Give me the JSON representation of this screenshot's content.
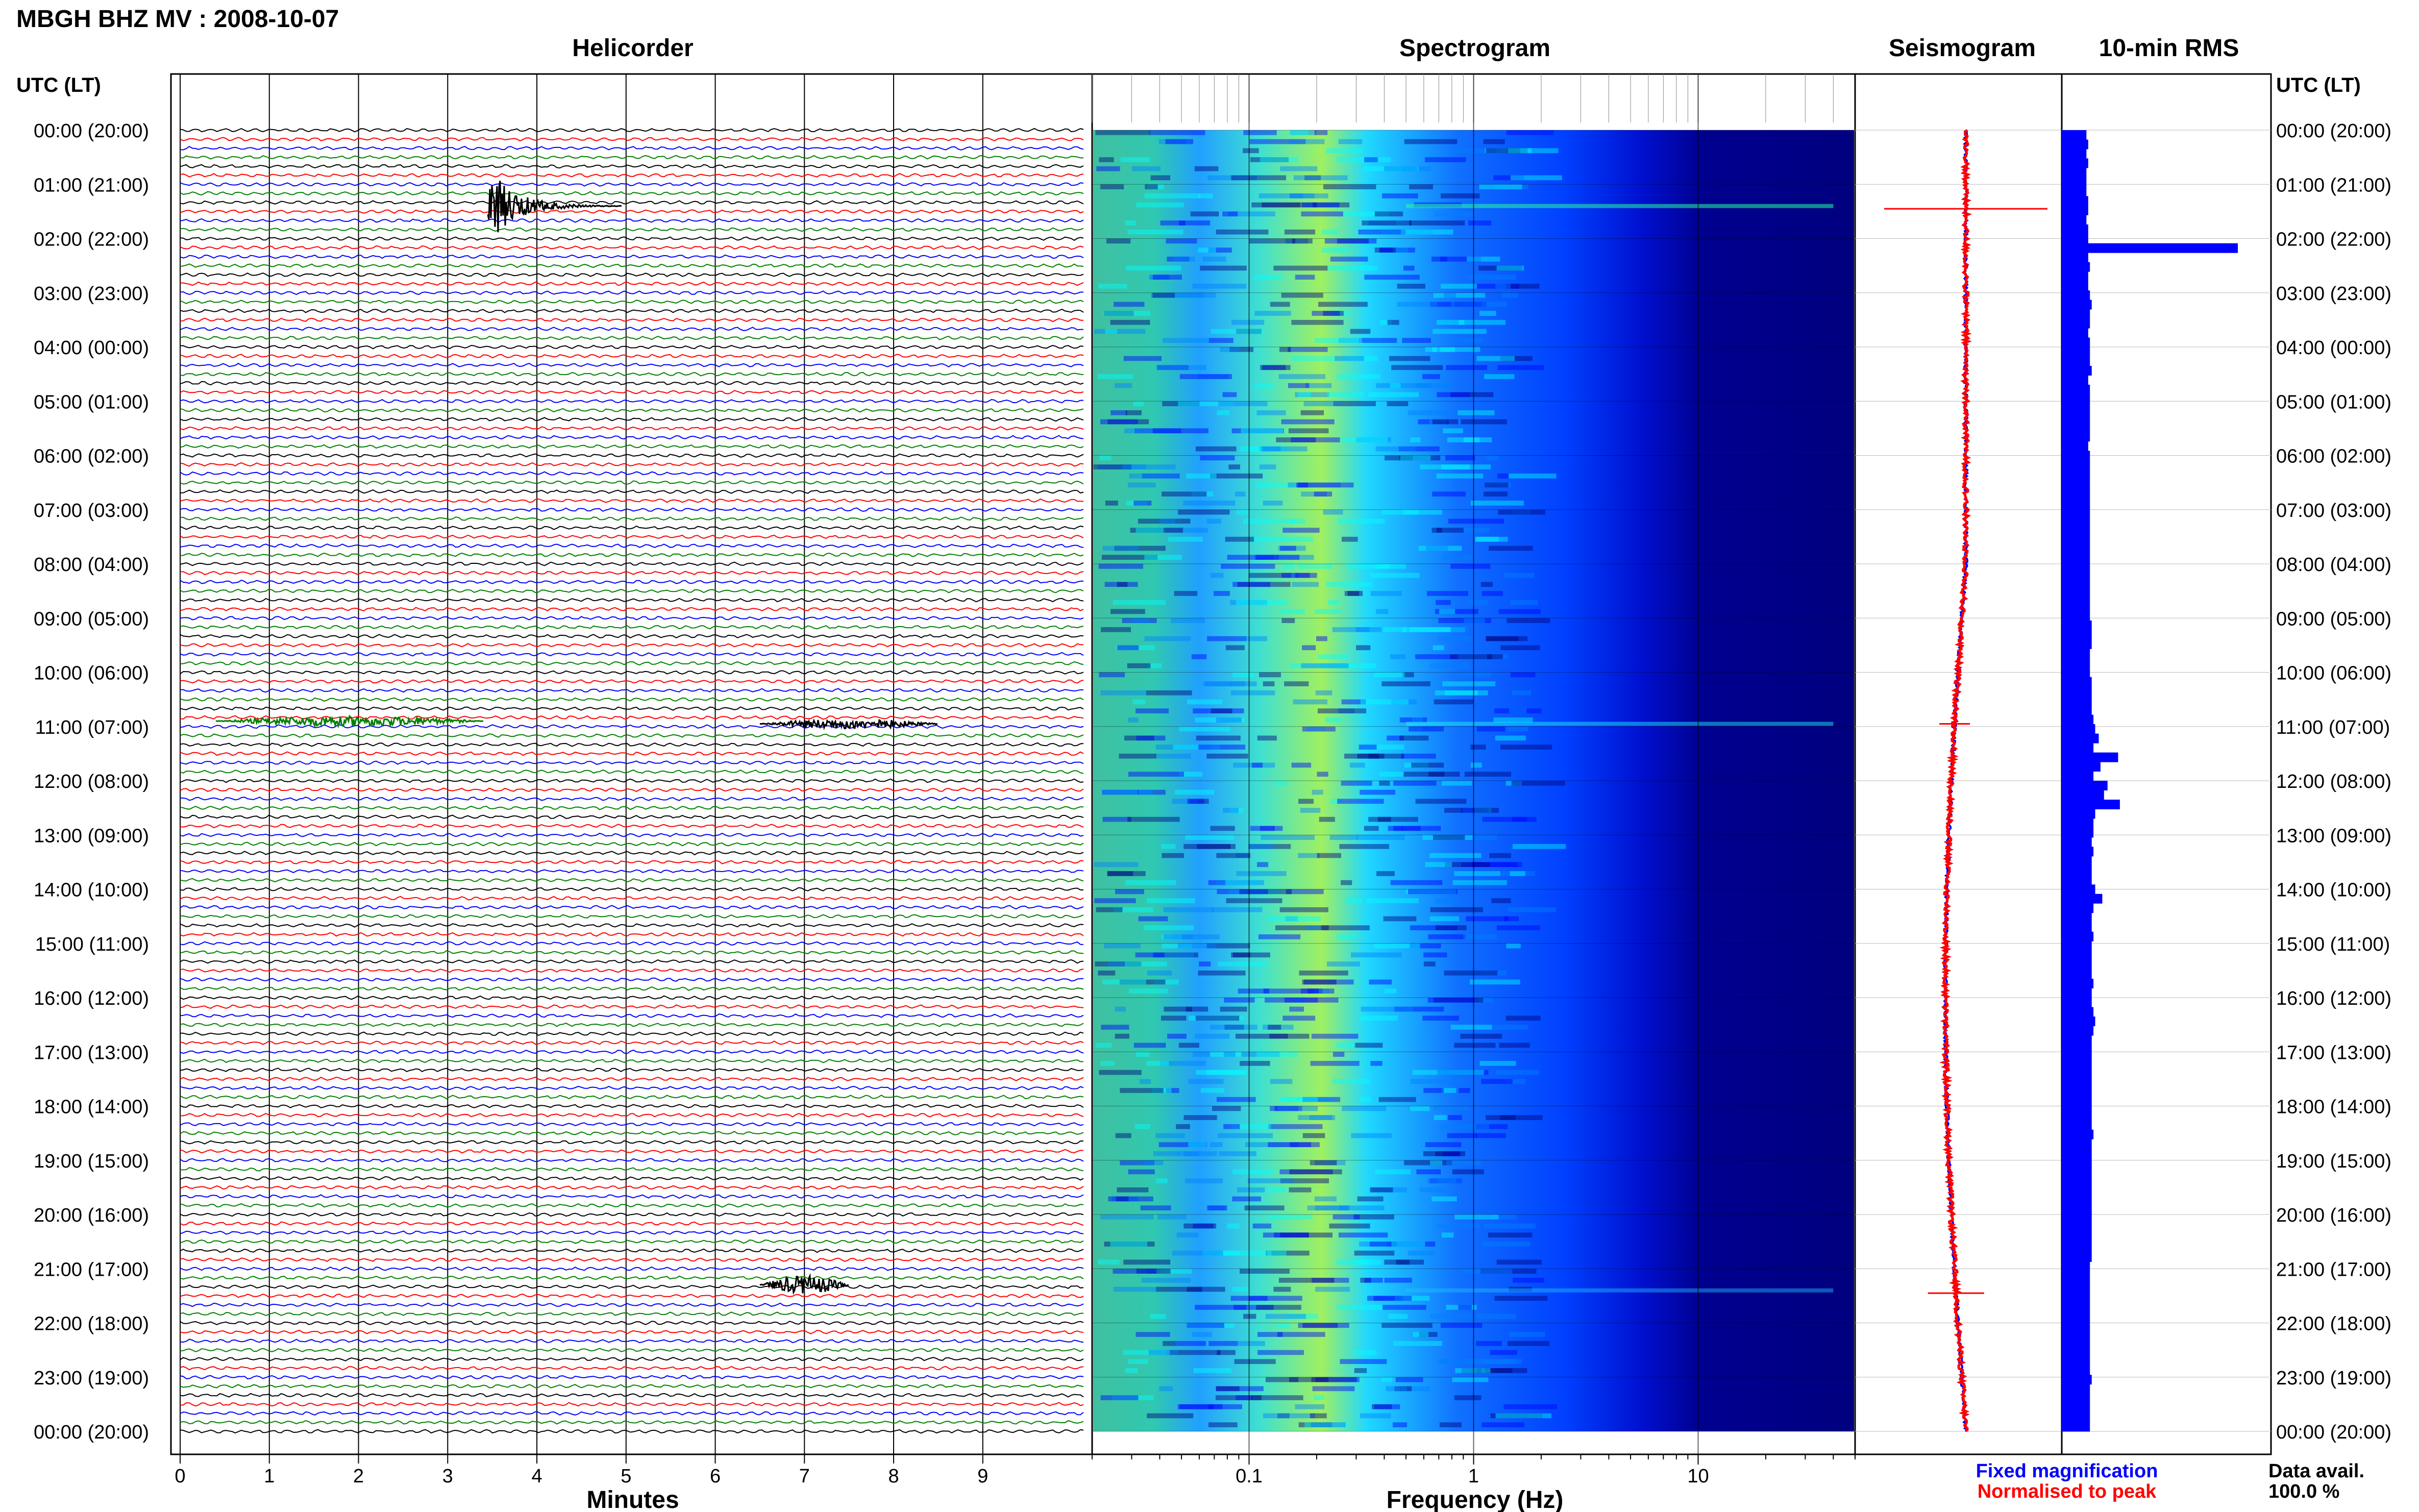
{
  "header": {
    "station_title": "MBGH BHZ MV : 2008-10-07"
  },
  "panels": {
    "helicorder_title": "Helicorder",
    "spectrogram_title": "Spectrogram",
    "seismogram_title": "Seismogram",
    "rms_title": "10-min RMS"
  },
  "axes": {
    "left_header": "UTC (LT)",
    "right_header": "UTC (LT)",
    "minutes_label": "Minutes",
    "frequency_label": "Frequency (Hz)"
  },
  "legend": {
    "fixed_label": "Fixed magnification",
    "normalised_label": "Normalised to peak",
    "fixed_color": "#0000ff",
    "normalised_color": "#ff0000"
  },
  "data_availability": {
    "label": "Data avail.",
    "value": "100.0 %"
  },
  "chart_data": {
    "type": "table",
    "time_labels": [
      "00:00 (20:00)",
      "01:00 (21:00)",
      "02:00 (22:00)",
      "03:00 (23:00)",
      "04:00 (00:00)",
      "05:00 (01:00)",
      "06:00 (02:00)",
      "07:00 (03:00)",
      "08:00 (04:00)",
      "09:00 (05:00)",
      "10:00 (06:00)",
      "11:00 (07:00)",
      "12:00 (08:00)",
      "13:00 (09:00)",
      "14:00 (10:00)",
      "15:00 (11:00)",
      "16:00 (12:00)",
      "17:00 (13:00)",
      "18:00 (14:00)",
      "19:00 (15:00)",
      "20:00 (16:00)",
      "21:00 (17:00)",
      "22:00 (18:00)",
      "23:00 (19:00)",
      "00:00 (20:00)"
    ],
    "helicorder": {
      "x_ticks": [
        "0",
        "1",
        "2",
        "3",
        "4",
        "5",
        "6",
        "7",
        "8",
        "9"
      ],
      "xlim": [
        0,
        10
      ],
      "trace_colors": [
        "#000000",
        "#ff0000",
        "#0000ff",
        "#008000"
      ],
      "traces_per_hour": 6,
      "events": [
        {
          "hour": 1.4,
          "minute": 3.45,
          "duration": 1.5,
          "color": "#000000",
          "amplitude": "large"
        },
        {
          "hour": 10.9,
          "minute": 0.4,
          "duration": 3.0,
          "color": "#008000",
          "amplitude": "small"
        },
        {
          "hour": 10.95,
          "minute": 6.5,
          "duration": 2.0,
          "color": "#000000",
          "amplitude": "small"
        },
        {
          "hour": 21.3,
          "minute": 6.5,
          "duration": 1.0,
          "color": "#000000",
          "amplitude": "medium"
        }
      ]
    },
    "spectrogram": {
      "x_scale": "log",
      "xlim": [
        0.02,
        50
      ],
      "x_ticks": [
        "0.1",
        "1",
        "10"
      ],
      "colormap": [
        "#00007f",
        "#0000ff",
        "#0080ff",
        "#00ffff",
        "#80ff80",
        "#ffff00",
        "#ff8000"
      ]
    },
    "rms": {
      "bin_minutes": 10,
      "relative_values": [
        0.14,
        0.15,
        0.14,
        0.15,
        0.14,
        0.14,
        0.14,
        0.15,
        0.15,
        0.14,
        0.15,
        0.15,
        1.0,
        0.15,
        0.16,
        0.15,
        0.15,
        0.16,
        0.17,
        0.16,
        0.16,
        0.15,
        0.16,
        0.16,
        0.16,
        0.17,
        0.15,
        0.16,
        0.16,
        0.16,
        0.16,
        0.16,
        0.16,
        0.15,
        0.16,
        0.16,
        0.16,
        0.16,
        0.16,
        0.16,
        0.16,
        0.16,
        0.16,
        0.16,
        0.16,
        0.16,
        0.16,
        0.16,
        0.16,
        0.16,
        0.16,
        0.16,
        0.17,
        0.17,
        0.17,
        0.16,
        0.16,
        0.16,
        0.17,
        0.17,
        0.17,
        0.17,
        0.18,
        0.19,
        0.21,
        0.18,
        0.32,
        0.22,
        0.18,
        0.26,
        0.24,
        0.33,
        0.19,
        0.18,
        0.18,
        0.17,
        0.18,
        0.17,
        0.17,
        0.17,
        0.19,
        0.23,
        0.18,
        0.17,
        0.17,
        0.18,
        0.17,
        0.17,
        0.17,
        0.17,
        0.18,
        0.17,
        0.17,
        0.18,
        0.19,
        0.18,
        0.17,
        0.17,
        0.17,
        0.17,
        0.17,
        0.17,
        0.17,
        0.17,
        0.17,
        0.17,
        0.18,
        0.17,
        0.17,
        0.17,
        0.17,
        0.17,
        0.17,
        0.17,
        0.17,
        0.17,
        0.17,
        0.17,
        0.17,
        0.17,
        0.16,
        0.16,
        0.16,
        0.16,
        0.16,
        0.16,
        0.16,
        0.16,
        0.16,
        0.16,
        0.16,
        0.16,
        0.17,
        0.16,
        0.16,
        0.16,
        0.16,
        0.16
      ]
    }
  }
}
